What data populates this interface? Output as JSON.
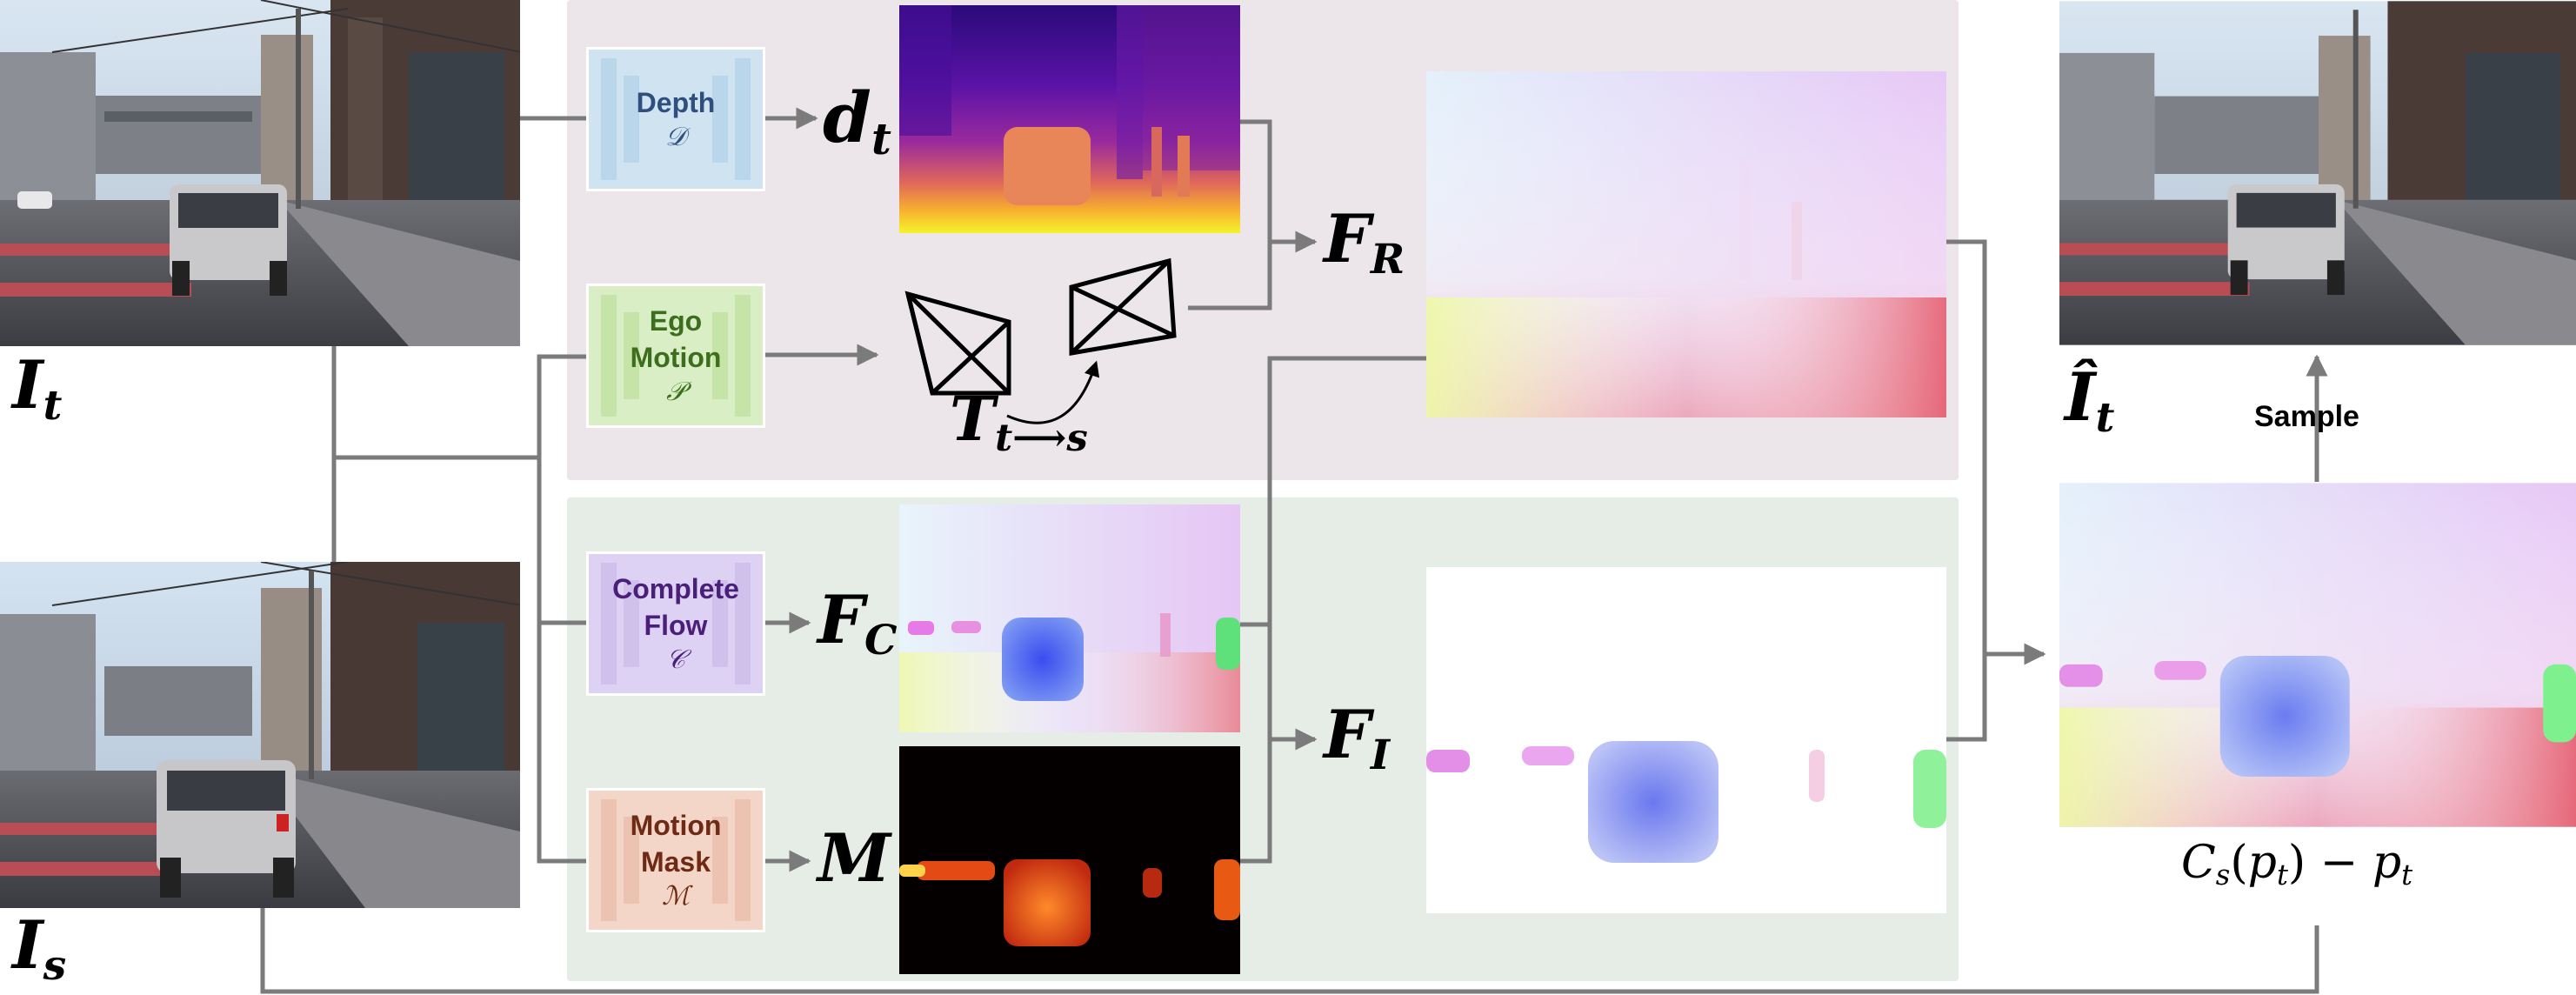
{
  "panels": {
    "top_bg": "#ece6ea",
    "bottom_bg": "#e5ede6"
  },
  "labels": {
    "img_t": "I",
    "img_t_sub": "t",
    "img_s": "I",
    "img_s_sub": "s",
    "img_hat": "Î",
    "img_hat_sub": "t",
    "depth_out": "d",
    "depth_out_sub": "t",
    "pose_out": "T",
    "pose_out_sub": "t⟶s",
    "flow_rigid": "F",
    "flow_rigid_sub": "R",
    "flow_complete": "F",
    "flow_complete_sub": "C",
    "flow_independent": "F",
    "flow_independent_sub": "I",
    "mask_out": "M",
    "sample": "Sample",
    "formula_c": "C",
    "formula_c_sub": "s",
    "formula_open": "(",
    "formula_p1": "p",
    "formula_p1_sub": "t",
    "formula_close": ") − ",
    "formula_p2": "p",
    "formula_p2_sub": "t"
  },
  "modules": [
    {
      "id": "depth",
      "label": "Depth",
      "symbol": "𝒟",
      "fill": "#cfe3f1",
      "bar": "#b9d6ea",
      "text_color": "#2f4f7f"
    },
    {
      "id": "ego-motion",
      "label": "Ego\nMotion",
      "symbol": "𝒫",
      "fill": "#d9eec4",
      "bar": "#c6e3a8",
      "text_color": "#3c6e1e"
    },
    {
      "id": "complete-flow",
      "label": "Complete\nFlow",
      "symbol": "𝒞",
      "fill": "#ddd2f3",
      "bar": "#cfc0ec",
      "text_color": "#4a1f7a"
    },
    {
      "id": "motion-mask",
      "label": "Motion\nMask",
      "symbol": "ℳ",
      "fill": "#f3d6c8",
      "bar": "#ecc3b0",
      "text_color": "#6e2a14"
    }
  ],
  "colors": {
    "arrow": "#7b7b7b",
    "text": "#000000"
  }
}
